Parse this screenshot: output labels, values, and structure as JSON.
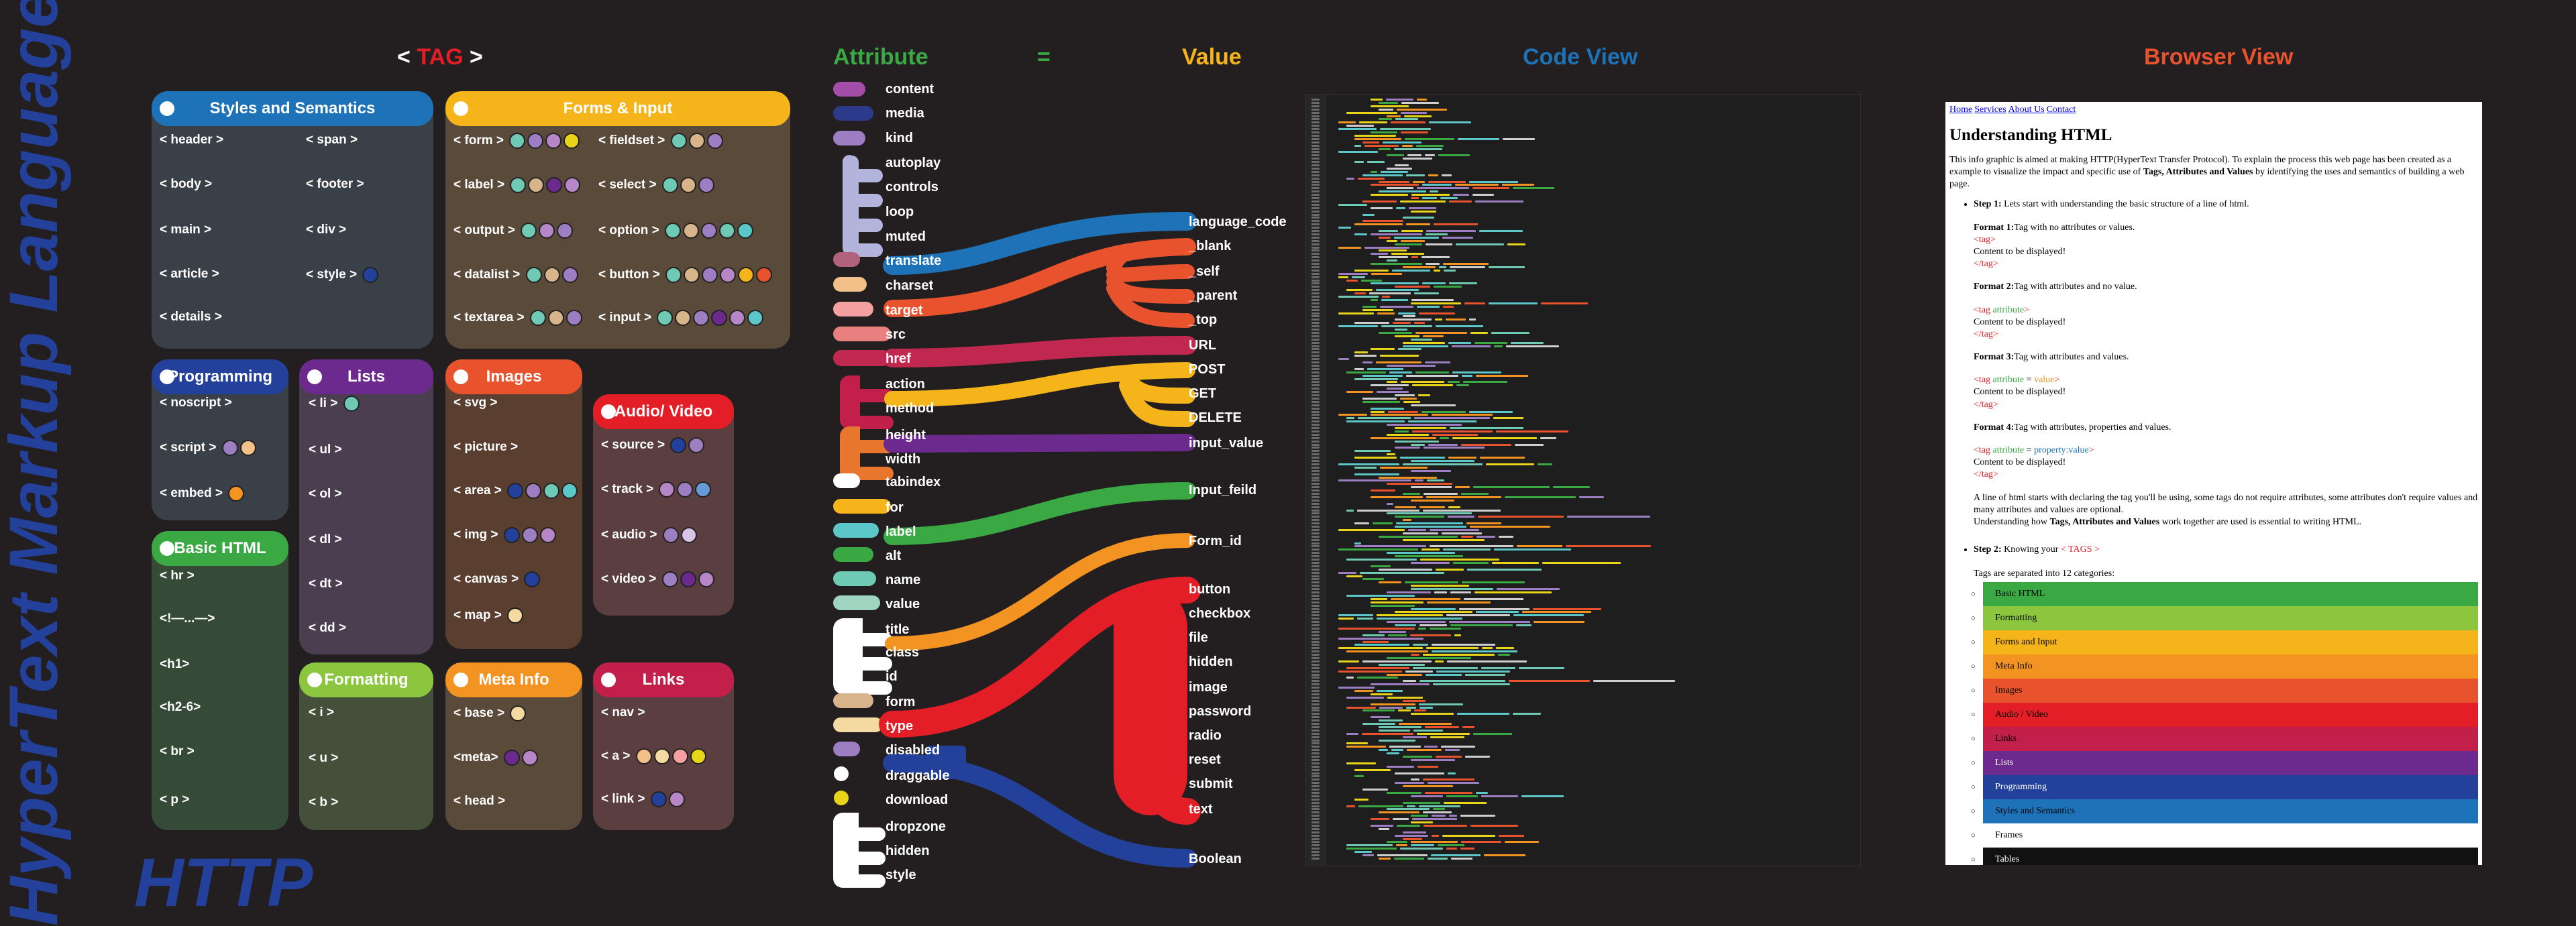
{
  "side_title": "HyperText Markup Language",
  "bottom_title": "HTTP",
  "headings": {
    "tag_open": "<",
    "tag": "TAG",
    "tag_close": ">",
    "attribute": "Attribute",
    "equals": "=",
    "value": "Value",
    "code_view": "Code View",
    "browser_view": "Browser View"
  },
  "colors": {
    "styles": "#1d72b8",
    "forms": "#f4b41a",
    "programming": "#23409a",
    "lists": "#6d2a8e",
    "images": "#e8532d",
    "audio_video": "#e31e26",
    "basic_html": "#3aa944",
    "formatting": "#8cc63f",
    "meta": "#f39322",
    "links": "#c21f4a",
    "frames": "#ffffff",
    "tables": "#111111"
  },
  "cards": {
    "styles": {
      "title": "Styles and Semantics",
      "left": [
        "< header >",
        "< body >",
        "< main >",
        "< article >",
        "< details >"
      ],
      "right": [
        "< span >",
        "< footer >",
        "< div >",
        "< style >"
      ]
    },
    "forms": {
      "title": "Forms & Input",
      "left": [
        "< form >",
        "< label >",
        "< output >",
        "< datalist >",
        "< textarea >"
      ],
      "right": [
        "< fieldset >",
        "< select >",
        "< option >",
        "< button >",
        "< input >"
      ]
    },
    "programming": {
      "title": "Programming",
      "items": [
        "< noscript >",
        "< script >",
        "< embed >"
      ]
    },
    "lists": {
      "title": "Lists",
      "items": [
        "< li >",
        "< ul >",
        "< ol >",
        "< dl >",
        "< dt >",
        "< dd >"
      ]
    },
    "images": {
      "title": "Images",
      "items": [
        "< svg >",
        "< picture >",
        "< area >",
        "< img >",
        "< canvas >",
        "< map >"
      ]
    },
    "audio": {
      "title": "Audio/ Video",
      "items": [
        "< source >",
        "< track >",
        "< audio >",
        "< video >"
      ]
    },
    "basic": {
      "title": "Basic HTML",
      "items": [
        "< hr >",
        "<!—...—>",
        "<h1>",
        "<h2-6>",
        "< br >",
        "< p >"
      ]
    },
    "formatting": {
      "title": "Formatting",
      "items": [
        "< i >",
        "< u >",
        "< b >"
      ]
    },
    "meta": {
      "title": "Meta Info",
      "items": [
        "< base >",
        "<meta>",
        "< head >"
      ]
    },
    "links": {
      "title": "Links",
      "items": [
        "< nav >",
        "< a >",
        "< link >"
      ]
    }
  },
  "attributes": [
    "content",
    "media",
    "kind",
    "autoplay",
    "controls",
    "loop",
    "muted",
    "translate",
    "charset",
    "target",
    "src",
    "href",
    "action",
    "method",
    "height",
    "width",
    "tabindex",
    "for",
    "label",
    "alt",
    "name",
    "value",
    "title",
    "class",
    "id",
    "form",
    "type",
    "disabled",
    "draggable",
    "download",
    "dropzone",
    "hidden",
    "style"
  ],
  "values": [
    "language_code",
    "_blank",
    "_self",
    "_parent",
    "_top",
    "URL",
    "POST",
    "GET",
    "DELETE",
    "input_value",
    "Input_feild",
    "Form_id",
    "button",
    "checkbox",
    "file",
    "hidden",
    "image",
    "password",
    "radio",
    "reset",
    "submit",
    "text",
    "Boolean"
  ],
  "browser": {
    "nav": [
      "Home",
      "Services",
      "About Us",
      "Contact"
    ],
    "title": "Understanding HTML",
    "intro_a": "This info graphic is aimed at making HTTP(HyperText Transfer Protocol). To explain the process this web page has been created as a example to visualize the impact and specific use of ",
    "intro_b": "Tags, Attributes and Values",
    "intro_c": " by identifying the uses and semantics of building a web page.",
    "step1_label": "Step 1:",
    "step1_text": " Lets start with understanding the basic structure of a line of html.",
    "f1_label": "Format 1:",
    "f1_text": "Tag with no attributes or values.",
    "f2_label": "Format 2:",
    "f2_text": "Tag with attributes and no value.",
    "f3_label": "Format 3:",
    "f3_text": "Tag with attributes and values.",
    "f4_label": "Format 4:",
    "f4_text": "Tag with attributes, properties and values.",
    "tag_open": "<tag>",
    "tag_close": "</tag>",
    "content_line": "Content to be displayed!",
    "lt": "<",
    "gt": ">",
    "tag_word": "tag",
    "attribute_word": " attribute",
    "eq": " = ",
    "value_word": "value",
    "property_word": "property:value",
    "para_a": "A line of html starts with declaring the tag you'll be using, some tags do not require attributes, some attributes don't require values and many attributes and values are optional.",
    "para_b1": "Understanding how ",
    "para_b2": "Tags, Attributes and Values",
    "para_b3": " work together are used is essential to writing HTML.",
    "step2_label": "Step 2:",
    "step2_text_a": " Knowing your ",
    "step2_tags": "< TAGS >",
    "step2_sub": "Tags are separated into 12 categories:",
    "categories": [
      "Basic HTML",
      "Formatting",
      "Forms and Input",
      "Meta Info",
      "Images",
      "Audio / Video",
      "Links",
      "Lists",
      "Programming",
      "Styles and Semantics",
      "Frames",
      "Tables"
    ],
    "category_colors": [
      "#3aa944",
      "#8cc63f",
      "#f4b41a",
      "#f39322",
      "#e8532d",
      "#e31e26",
      "#c21f4a",
      "#6d2a8e",
      "#23409a",
      "#1d72b8",
      "#ffffff",
      "#111111"
    ]
  }
}
